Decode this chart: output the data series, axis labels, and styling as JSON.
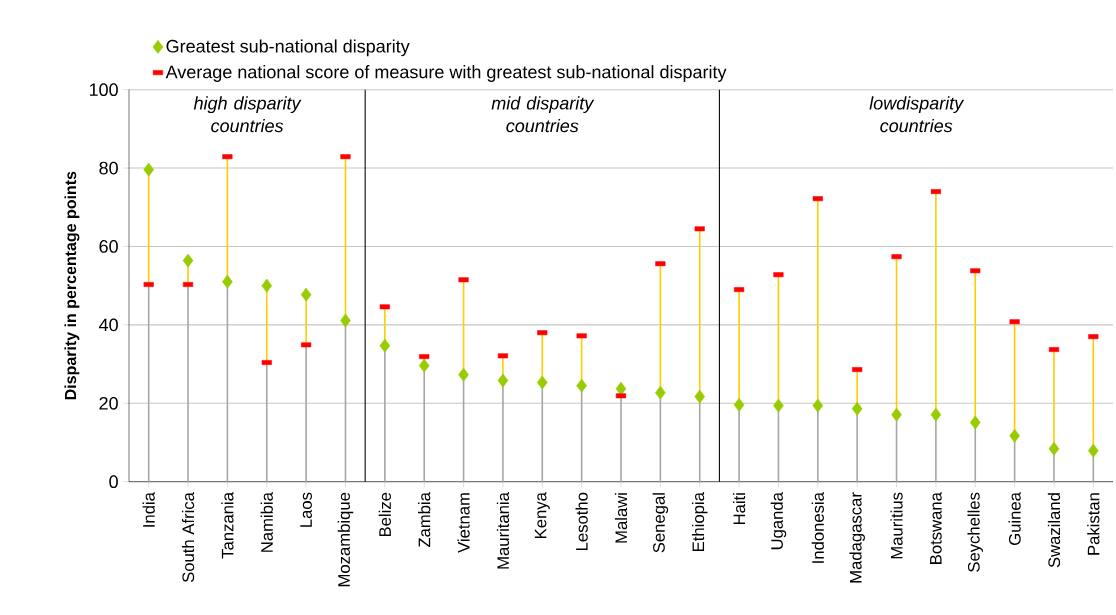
{
  "chart_data": {
    "type": "scatter",
    "ylabel": "Disparity in percentage points",
    "categories": [
      "India",
      "South Africa",
      "Tanzania",
      "Namibia",
      "Laos",
      "Mozambique",
      "Belize",
      "Zambia",
      "Vietnam",
      "Mauritania",
      "Kenya",
      "Lesotho",
      "Malawi",
      "Senegal",
      "Ethiopia",
      "Haiti",
      "Uganda",
      "Indonesia",
      "Madagascar",
      "Mauritius",
      "Botswana",
      "Seychelles",
      "Guinea",
      "Swaziland",
      "Pakistan"
    ],
    "series": [
      {
        "name": "Greatest sub-national disparity",
        "color": "#99cc00",
        "marker": "diamond",
        "values": [
          79.6,
          56.4,
          51.0,
          50.0,
          47.7,
          41.1,
          34.7,
          29.6,
          27.3,
          25.8,
          25.3,
          24.5,
          23.7,
          22.7,
          21.7,
          19.6,
          19.4,
          19.4,
          18.6,
          17.1,
          17.1,
          15.1,
          11.7,
          8.4,
          7.9
        ]
      },
      {
        "name": "Average national score of measure with greatest sub-national disparity",
        "color": "#ff0000",
        "values": [
          50.3,
          50.3,
          82.9,
          30.4,
          34.9,
          82.9,
          44.6,
          31.9,
          51.5,
          32.1,
          38.0,
          37.2,
          21.9,
          55.6,
          64.5,
          49.0,
          52.8,
          72.2,
          28.6,
          57.4,
          74.0,
          53.8,
          40.8,
          33.7,
          37.0
        ]
      }
    ],
    "ylim": [
      0,
      100
    ],
    "yticks": [
      0,
      20,
      40,
      60,
      80,
      100
    ],
    "grid": "y",
    "legend": "top left",
    "annotations": [
      "high disparity countries",
      "mid disparity countries",
      "lowdisparity countries"
    ]
  }
}
